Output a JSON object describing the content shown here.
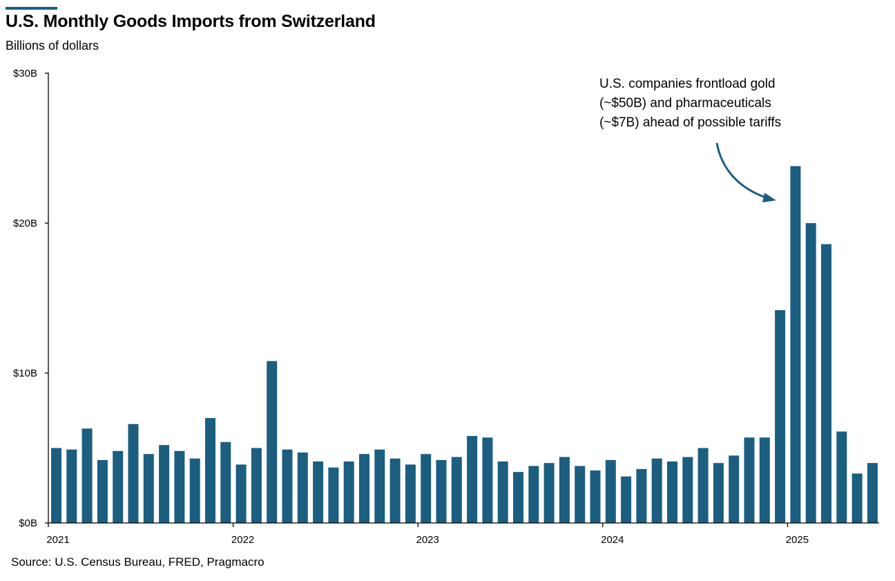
{
  "header": {
    "title": "U.S. Monthly Goods Imports from Switzerland",
    "subtitle": "Billions of dollars"
  },
  "footer": {
    "source": "Source: U.S. Census Bureau, FRED, Pragmacro"
  },
  "annotation": {
    "lines": [
      "U.S. companies frontload gold",
      "(~$50B) and pharmaceuticals",
      "(~$7B) ahead of possible tariffs"
    ]
  },
  "colors": {
    "bar": "#1b5e80",
    "accent": "#1b5e80",
    "arrow": "#1b5e80"
  },
  "chart_data": {
    "type": "bar",
    "title": "U.S. Monthly Goods Imports from Switzerland",
    "ylabel": "Billions of dollars",
    "xlabel": "",
    "ylim": [
      0,
      30
    ],
    "yticks": [
      0,
      10,
      20,
      30
    ],
    "ytick_labels": [
      "$0B",
      "$10B",
      "$20B",
      "$30B"
    ],
    "xtick_labels": [
      "2021",
      "2022",
      "2023",
      "2024",
      "2025"
    ],
    "categories": [
      "2021-01",
      "2021-02",
      "2021-03",
      "2021-04",
      "2021-05",
      "2021-06",
      "2021-07",
      "2021-08",
      "2021-09",
      "2021-10",
      "2021-11",
      "2021-12",
      "2022-01",
      "2022-02",
      "2022-03",
      "2022-04",
      "2022-05",
      "2022-06",
      "2022-07",
      "2022-08",
      "2022-09",
      "2022-10",
      "2022-11",
      "2022-12",
      "2023-01",
      "2023-02",
      "2023-03",
      "2023-04",
      "2023-05",
      "2023-06",
      "2023-07",
      "2023-08",
      "2023-09",
      "2023-10",
      "2023-11",
      "2023-12",
      "2024-01",
      "2024-02",
      "2024-03",
      "2024-04",
      "2024-05",
      "2024-06",
      "2024-07",
      "2024-08",
      "2024-09",
      "2024-10",
      "2024-11",
      "2024-12",
      "2025-01",
      "2025-02",
      "2025-03",
      "2025-04",
      "2025-05",
      "2025-06"
    ],
    "values": [
      5.0,
      4.9,
      6.3,
      4.2,
      4.8,
      6.6,
      4.6,
      5.2,
      4.8,
      4.3,
      7.0,
      5.4,
      3.9,
      5.0,
      10.8,
      4.9,
      4.7,
      4.1,
      3.7,
      4.1,
      4.6,
      4.9,
      4.3,
      3.9,
      4.6,
      4.2,
      4.4,
      5.8,
      5.7,
      4.1,
      3.4,
      3.8,
      4.0,
      4.4,
      3.8,
      3.5,
      4.2,
      3.1,
      3.6,
      4.3,
      4.1,
      4.4,
      5.0,
      4.0,
      4.5,
      5.7,
      5.7,
      14.2,
      23.8,
      20.0,
      18.6,
      6.1,
      3.3,
      4.0
    ]
  }
}
